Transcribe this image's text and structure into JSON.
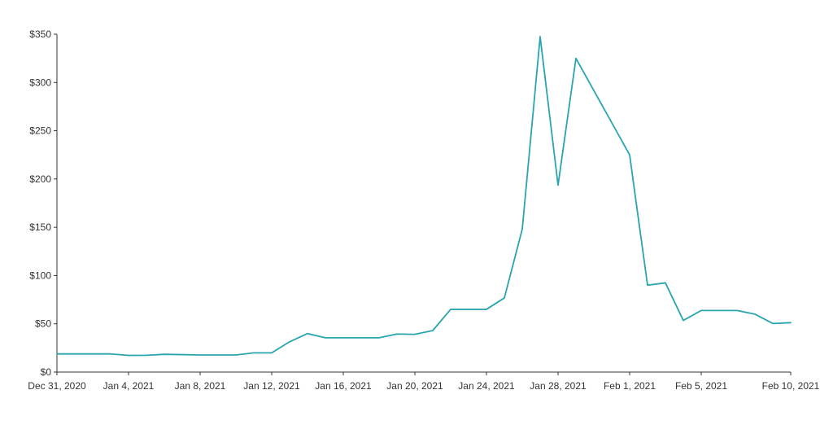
{
  "chart_data": {
    "type": "line",
    "title": "",
    "xlabel": "",
    "ylabel": "",
    "x_tick_labels": [
      "Dec 31, 2020",
      "Jan 4, 2021",
      "Jan 8, 2021",
      "Jan 12, 2021",
      "Jan 16, 2021",
      "Jan 20, 2021",
      "Jan 24, 2021",
      "Jan 28, 2021",
      "Feb 1, 2021",
      "Feb 5, 2021",
      "Feb 10, 2021"
    ],
    "x_tick_dates": [
      "2020-12-31",
      "2021-01-04",
      "2021-01-08",
      "2021-01-12",
      "2021-01-16",
      "2021-01-20",
      "2021-01-24",
      "2021-01-28",
      "2021-02-01",
      "2021-02-05",
      "2021-02-10"
    ],
    "y_tick_labels": [
      "$0",
      "$50",
      "$100",
      "$150",
      "$200",
      "$250",
      "$300",
      "$350"
    ],
    "y_ticks": [
      0,
      50,
      100,
      150,
      200,
      250,
      300,
      350
    ],
    "ylim": [
      0,
      350
    ],
    "xlim": [
      "2020-12-31",
      "2021-02-10"
    ],
    "grid": false,
    "series": [
      {
        "color": "#2aa4ad",
        "points": [
          {
            "x": "2020-12-31",
            "y": 18.8
          },
          {
            "x": "2021-01-01",
            "y": 18.8
          },
          {
            "x": "2021-01-02",
            "y": 18.8
          },
          {
            "x": "2021-01-03",
            "y": 18.8
          },
          {
            "x": "2021-01-04",
            "y": 17.3
          },
          {
            "x": "2021-01-05",
            "y": 17.4
          },
          {
            "x": "2021-01-06",
            "y": 18.4
          },
          {
            "x": "2021-01-07",
            "y": 18.1
          },
          {
            "x": "2021-01-08",
            "y": 17.7
          },
          {
            "x": "2021-01-09",
            "y": 17.7
          },
          {
            "x": "2021-01-10",
            "y": 17.7
          },
          {
            "x": "2021-01-11",
            "y": 19.9
          },
          {
            "x": "2021-01-12",
            "y": 19.9
          },
          {
            "x": "2021-01-13",
            "y": 31.4
          },
          {
            "x": "2021-01-14",
            "y": 39.9
          },
          {
            "x": "2021-01-15",
            "y": 35.5
          },
          {
            "x": "2021-01-16",
            "y": 35.5
          },
          {
            "x": "2021-01-17",
            "y": 35.5
          },
          {
            "x": "2021-01-18",
            "y": 35.5
          },
          {
            "x": "2021-01-19",
            "y": 39.4
          },
          {
            "x": "2021-01-20",
            "y": 39.1
          },
          {
            "x": "2021-01-21",
            "y": 43.0
          },
          {
            "x": "2021-01-22",
            "y": 65.0
          },
          {
            "x": "2021-01-23",
            "y": 65.0
          },
          {
            "x": "2021-01-24",
            "y": 65.0
          },
          {
            "x": "2021-01-25",
            "y": 76.8
          },
          {
            "x": "2021-01-26",
            "y": 148.0
          },
          {
            "x": "2021-01-27",
            "y": 347.5
          },
          {
            "x": "2021-01-28",
            "y": 193.6
          },
          {
            "x": "2021-01-29",
            "y": 325.0
          },
          {
            "x": "2021-02-01",
            "y": 225.0
          },
          {
            "x": "2021-02-02",
            "y": 90.0
          },
          {
            "x": "2021-02-03",
            "y": 92.4
          },
          {
            "x": "2021-02-04",
            "y": 53.5
          },
          {
            "x": "2021-02-05",
            "y": 63.8
          },
          {
            "x": "2021-02-06",
            "y": 63.8
          },
          {
            "x": "2021-02-07",
            "y": 63.8
          },
          {
            "x": "2021-02-08",
            "y": 60.0
          },
          {
            "x": "2021-02-09",
            "y": 50.3
          },
          {
            "x": "2021-02-10",
            "y": 51.2
          }
        ]
      }
    ]
  }
}
